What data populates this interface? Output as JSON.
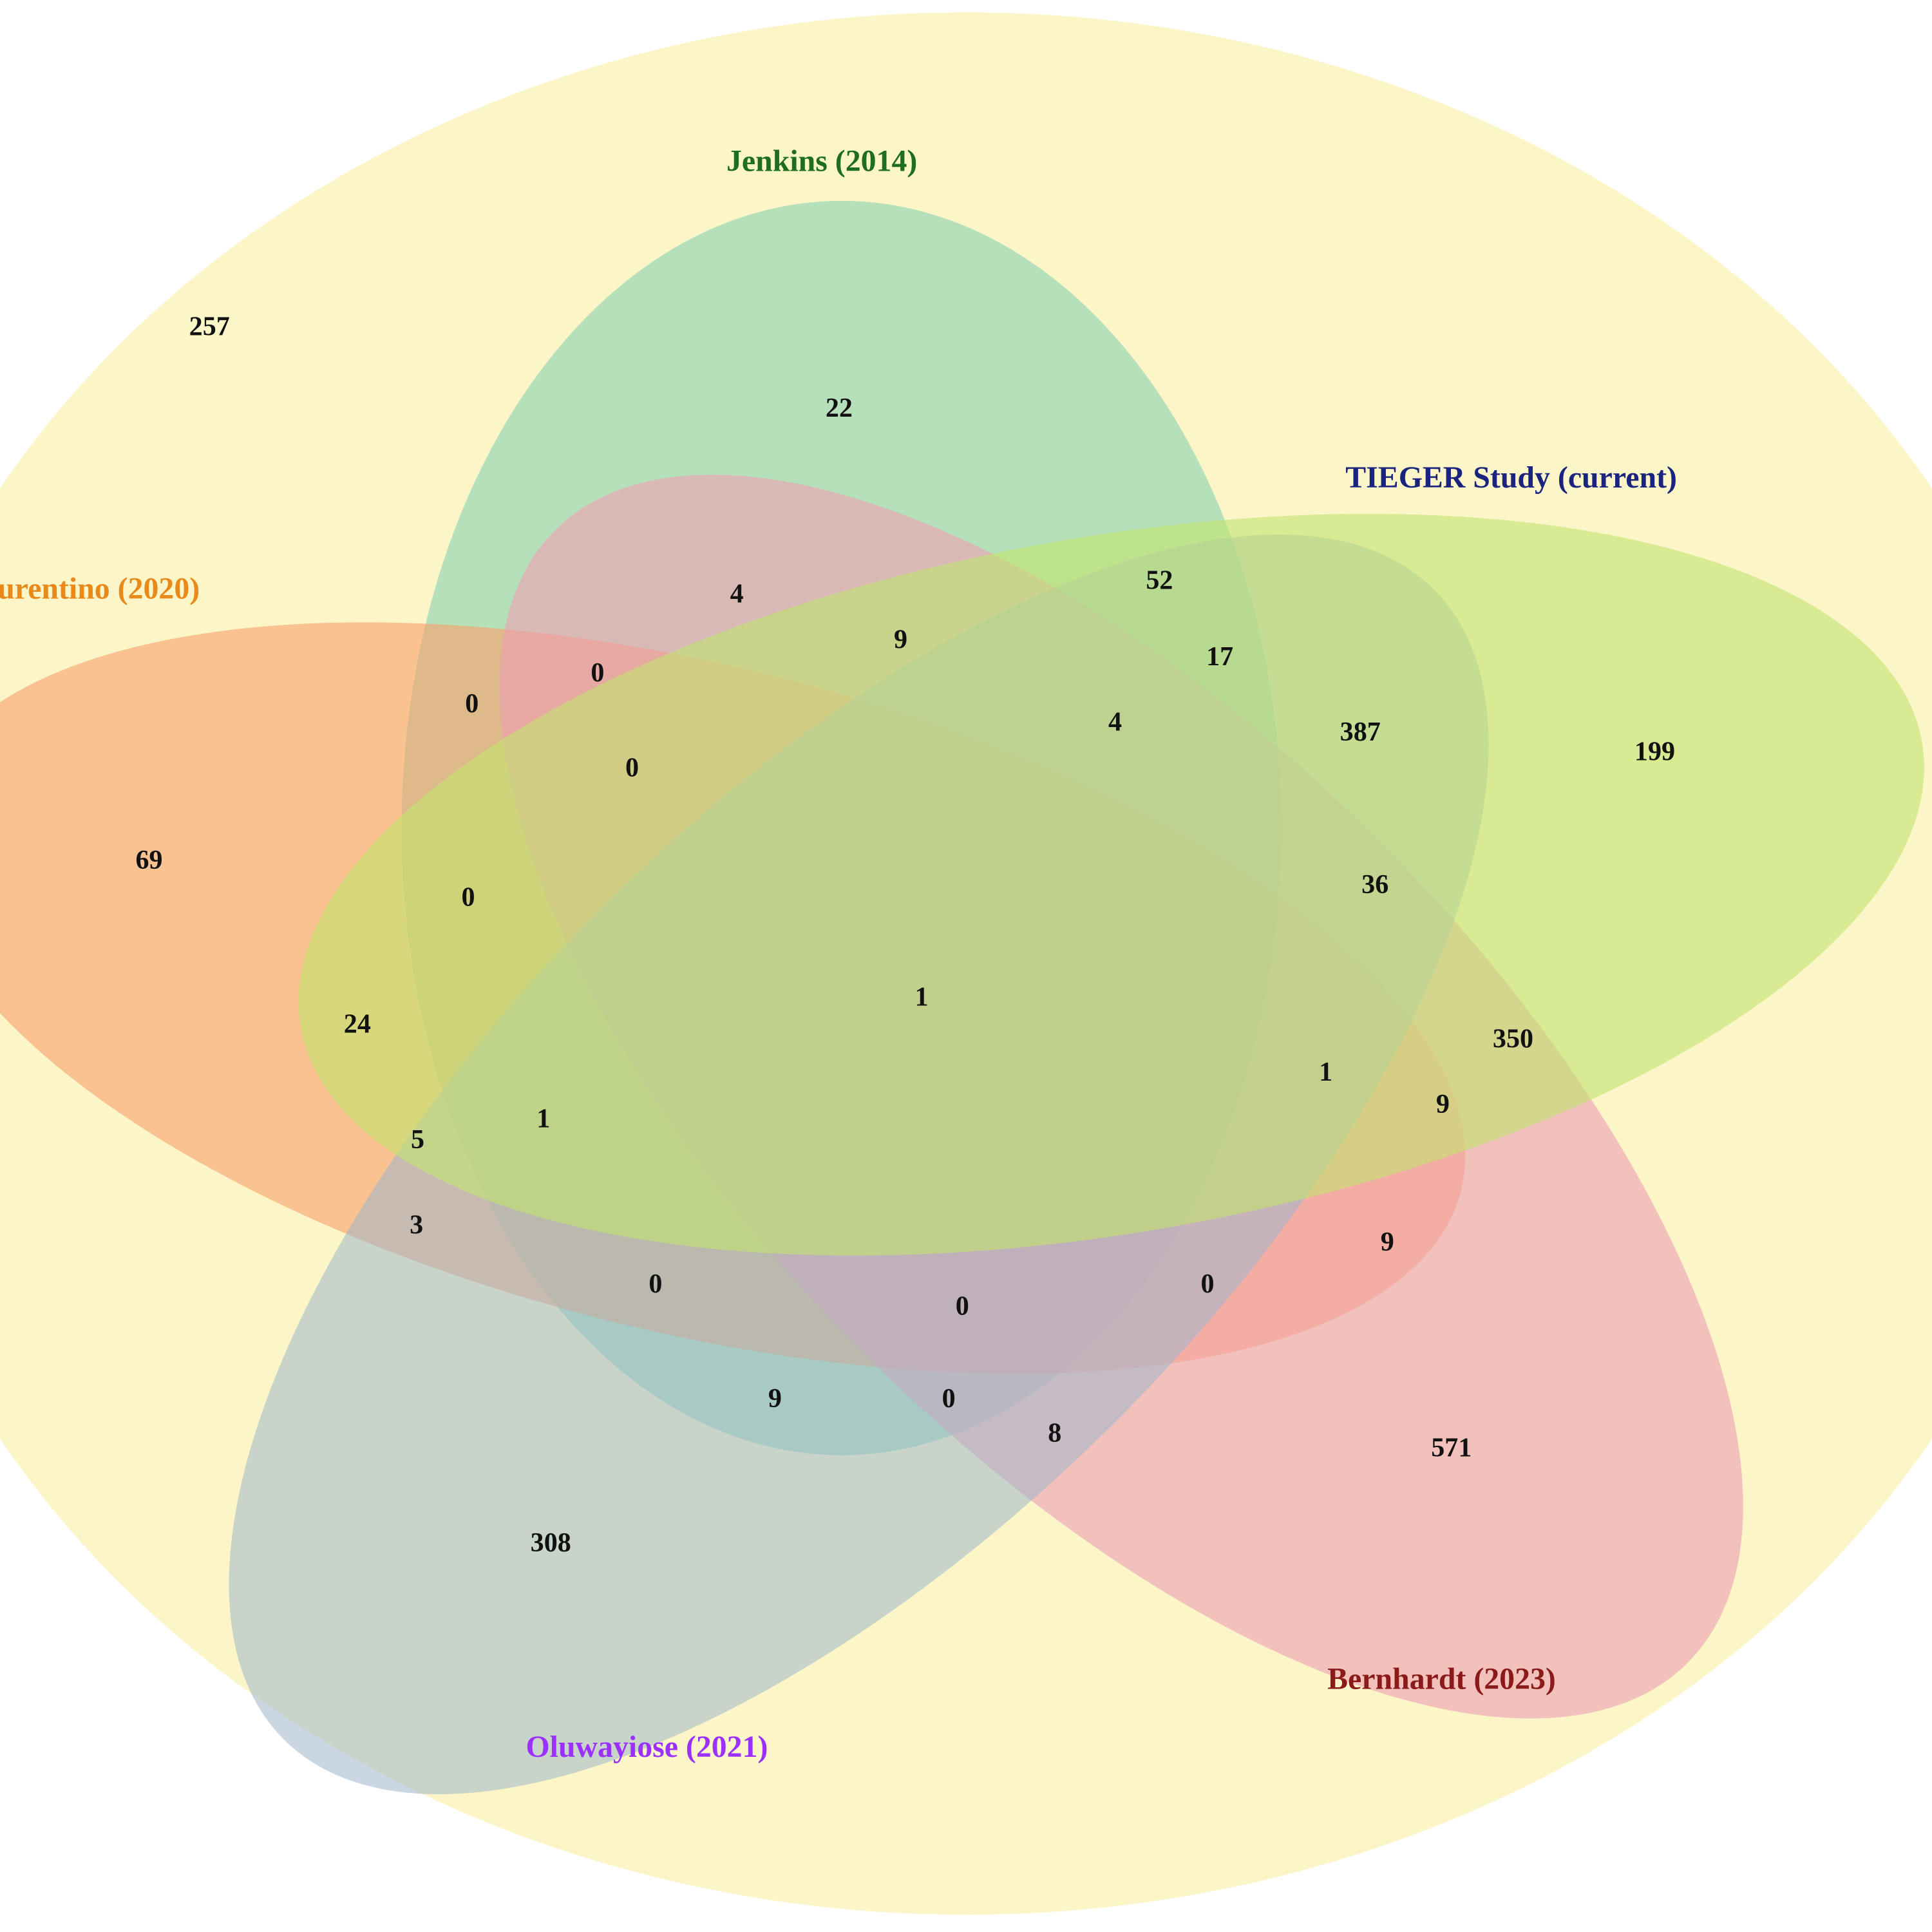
{
  "sets": [
    {
      "label": "Jenkins (2014)"
    },
    {
      "label": "TIEGER Study (current)"
    },
    {
      "label": "urentino (2020)"
    },
    {
      "label": "Oluwayiose (2021)"
    },
    {
      "label": "Bernhardt (2023)"
    }
  ],
  "regions": [
    257,
    22,
    52,
    4,
    9,
    17,
    0,
    0,
    4,
    387,
    199,
    0,
    69,
    36,
    0,
    1,
    24,
    350,
    1,
    9,
    1,
    5,
    3,
    9,
    0,
    0,
    0,
    9,
    0,
    8,
    571,
    308
  ]
}
